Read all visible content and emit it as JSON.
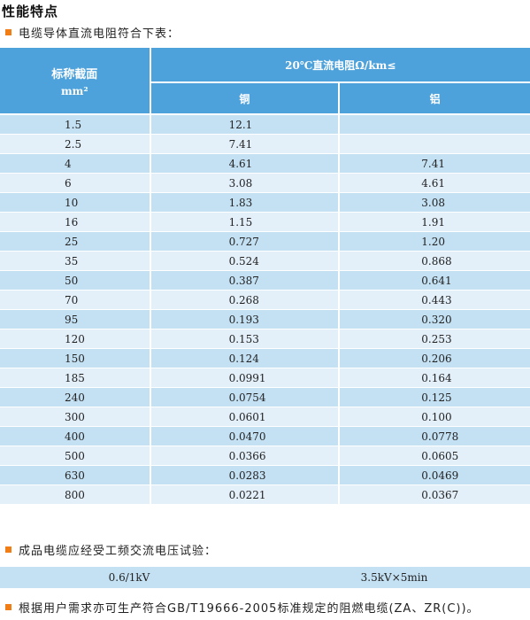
{
  "title": "性能特点",
  "intro": "电缆导体直流电阻符合下表：",
  "table": {
    "col1_header": "标称截面",
    "col1_unit": "mm²",
    "group_header": "20℃直流电阻Ω/km≤",
    "col2_header": "铜",
    "col3_header": "铝",
    "rows": [
      [
        "1.5",
        "12.1",
        ""
      ],
      [
        "2.5",
        "7.41",
        ""
      ],
      [
        "4",
        "4.61",
        "7.41"
      ],
      [
        "6",
        "3.08",
        "4.61"
      ],
      [
        "10",
        "1.83",
        "3.08"
      ],
      [
        "16",
        "1.15",
        "1.91"
      ],
      [
        "25",
        "0.727",
        "1.20"
      ],
      [
        "35",
        "0.524",
        "0.868"
      ],
      [
        "50",
        "0.387",
        "0.641"
      ],
      [
        "70",
        "0.268",
        "0.443"
      ],
      [
        "95",
        "0.193",
        "0.320"
      ],
      [
        "120",
        "0.153",
        "0.253"
      ],
      [
        "150",
        "0.124",
        "0.206"
      ],
      [
        "185",
        "0.0991",
        "0.164"
      ],
      [
        "240",
        "0.0754",
        "0.125"
      ],
      [
        "300",
        "0.0601",
        "0.100"
      ],
      [
        "400",
        "0.0470",
        "0.0778"
      ],
      [
        "500",
        "0.0366",
        "0.0605"
      ],
      [
        "630",
        "0.0283",
        "0.0469"
      ],
      [
        "800",
        "0.0221",
        "0.0367"
      ]
    ]
  },
  "voltage_test": {
    "label": "成品电缆应经受工频交流电压试验：",
    "rated": "0.6/1kV",
    "test": "3.5kV×5min"
  },
  "note": "根据用户需求亦可生产符合GB/T19666-2005标准规定的阻燃电缆(ZA、ZR(C))。",
  "colors": {
    "header_bg": "#4da2db",
    "row_dark": "#c4e1f4",
    "row_light": "#e3f0fa",
    "bullet": "#f07d16"
  }
}
